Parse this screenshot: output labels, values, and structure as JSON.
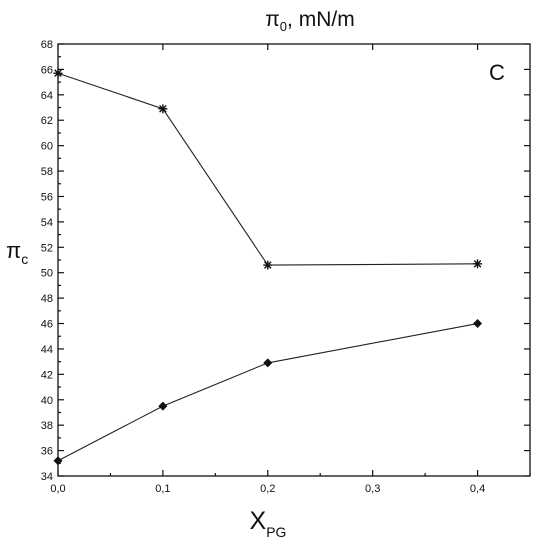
{
  "chart_data": {
    "type": "line",
    "title_main": "π",
    "title_sub": "0",
    "title_rest": ", mN/m",
    "panel_label": "C",
    "xlabel_main": "X",
    "xlabel_sub": "PG",
    "ylabel_main": "π",
    "ylabel_sub": "c",
    "xlim": [
      0.0,
      0.45
    ],
    "ylim": [
      34,
      68
    ],
    "x_ticks": [
      "0,0",
      "0,1",
      "0,2",
      "0,3",
      "0,4"
    ],
    "x_tick_values": [
      0.0,
      0.1,
      0.2,
      0.3,
      0.4
    ],
    "y_ticks": [
      "34",
      "36",
      "38",
      "40",
      "42",
      "44",
      "46",
      "48",
      "50",
      "52",
      "54",
      "56",
      "58",
      "60",
      "62",
      "64",
      "66",
      "68"
    ],
    "y_tick_values": [
      34,
      36,
      38,
      40,
      42,
      44,
      46,
      48,
      50,
      52,
      54,
      56,
      58,
      60,
      62,
      64,
      66,
      68
    ],
    "series": [
      {
        "marker": "star",
        "x": [
          0.0,
          0.1,
          0.2,
          0.4
        ],
        "y": [
          65.7,
          62.9,
          50.6,
          50.7
        ]
      },
      {
        "marker": "diamond",
        "x": [
          0.0,
          0.1,
          0.2,
          0.4
        ],
        "y": [
          35.2,
          39.5,
          42.9,
          46.0
        ]
      }
    ]
  }
}
